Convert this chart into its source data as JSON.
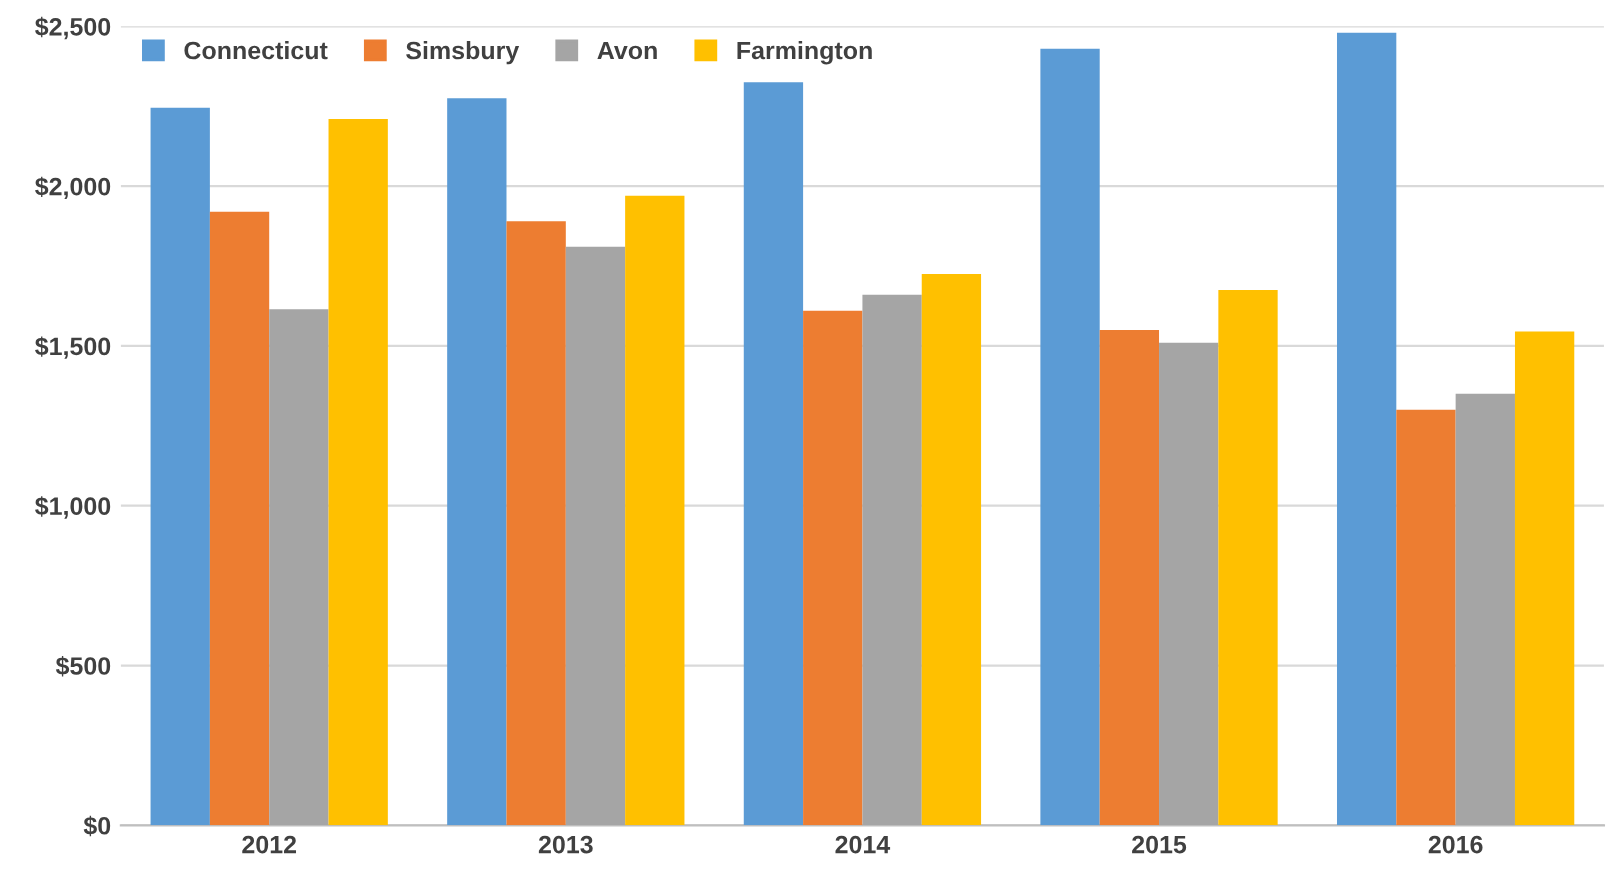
{
  "chart_data": {
    "type": "bar",
    "categories": [
      "2012",
      "2013",
      "2014",
      "2015",
      "2016"
    ],
    "series": [
      {
        "name": "Connecticut",
        "color": "#5b9bd5",
        "values": [
          2245,
          2275,
          2325,
          2430,
          2480
        ]
      },
      {
        "name": "Simsbury",
        "color": "#ed7d31",
        "values": [
          1920,
          1890,
          1610,
          1550,
          1300
        ]
      },
      {
        "name": "Avon",
        "color": "#a5a5a5",
        "values": [
          1615,
          1810,
          1660,
          1510,
          1350
        ]
      },
      {
        "name": "Farmington",
        "color": "#ffc000",
        "values": [
          2210,
          1970,
          1725,
          1675,
          1545
        ]
      }
    ],
    "ylim": [
      0,
      2500
    ],
    "yticks": [
      {
        "value": 0,
        "label": "$0"
      },
      {
        "value": 500,
        "label": "$500"
      },
      {
        "value": 1000,
        "label": "$1,000"
      },
      {
        "value": 1500,
        "label": "$1,500"
      },
      {
        "value": 2000,
        "label": "$2,000"
      },
      {
        "value": 2500,
        "label": "$2,500"
      }
    ],
    "grid": "y",
    "legend": "top left"
  }
}
